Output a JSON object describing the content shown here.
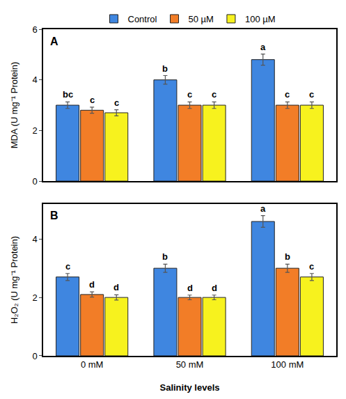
{
  "chart_data": [
    {
      "type": "bar",
      "panel_label": "A",
      "y_label": "MDA (U mg⁻¹ Protein)",
      "categories": [
        "0 mM",
        "50 mM",
        "100 mM"
      ],
      "series": [
        {
          "name": "Control",
          "color": "#3f86e0",
          "values": [
            3.0,
            4.0,
            4.8
          ],
          "errors": [
            0.13,
            0.17,
            0.22
          ],
          "letters": [
            "bc",
            "b",
            "a"
          ]
        },
        {
          "name": "50 µM",
          "color": "#f27d27",
          "values": [
            2.8,
            3.0,
            3.0
          ],
          "errors": [
            0.12,
            0.13,
            0.13
          ],
          "letters": [
            "c",
            "c",
            "c"
          ]
        },
        {
          "name": "100 µM",
          "color": "#f7f21e",
          "values": [
            2.7,
            3.0,
            3.0
          ],
          "errors": [
            0.12,
            0.13,
            0.13
          ],
          "letters": [
            "c",
            "c",
            "c"
          ]
        }
      ],
      "ylim": [
        0,
        6
      ],
      "yticks": [
        0,
        2,
        4,
        6
      ],
      "tick_labels": "y",
      "legend": "top"
    },
    {
      "type": "bar",
      "panel_label": "B",
      "y_label": "H₂O₂ (U mg⁻¹ Protein)",
      "x_label": "Salinity levels",
      "categories": [
        "0 mM",
        "50 mM",
        "100 mM"
      ],
      "series": [
        {
          "name": "Control",
          "color": "#3f86e0",
          "values": [
            2.7,
            3.0,
            4.6
          ],
          "errors": [
            0.12,
            0.14,
            0.2
          ],
          "letters": [
            "c",
            "b",
            "a"
          ]
        },
        {
          "name": "50 µM",
          "color": "#f27d27",
          "values": [
            2.1,
            2.0,
            3.0
          ],
          "errors": [
            0.09,
            0.08,
            0.14
          ],
          "letters": [
            "d",
            "d",
            "b"
          ]
        },
        {
          "name": "100 µM",
          "color": "#f7f21e",
          "values": [
            2.0,
            2.0,
            2.7
          ],
          "errors": [
            0.09,
            0.08,
            0.12
          ],
          "letters": [
            "d",
            "d",
            "c"
          ]
        }
      ],
      "ylim": [
        0,
        5.2
      ],
      "yticks": [
        0,
        2,
        4
      ]
    }
  ]
}
